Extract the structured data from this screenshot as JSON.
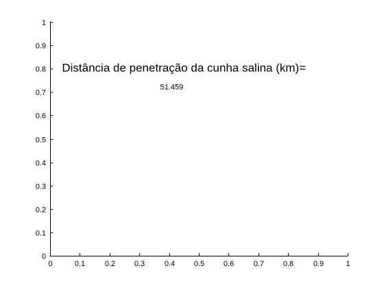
{
  "chart_data": {
    "type": "scatter",
    "title": "",
    "xlabel": "",
    "ylabel": "",
    "xlim": [
      0,
      1
    ],
    "ylim": [
      0,
      1
    ],
    "grid": false,
    "xticks": [
      "0",
      "0.1",
      "0.2",
      "0.3",
      "0.4",
      "0.5",
      "0.6",
      "0.7",
      "0.8",
      "0.9",
      "1"
    ],
    "yticks": [
      "0",
      "0.1",
      "0.2",
      "0.3",
      "0.4",
      "0.5",
      "0.6",
      "0.7",
      "0.8",
      "0.9",
      "1"
    ],
    "series": [],
    "annotations": [
      {
        "text": "Distância de penetração da cunha salina (km)=",
        "x": 0.04,
        "y": 0.8,
        "style": "main"
      },
      {
        "text": "51.459",
        "x": 0.37,
        "y": 0.72,
        "style": "value"
      }
    ]
  }
}
